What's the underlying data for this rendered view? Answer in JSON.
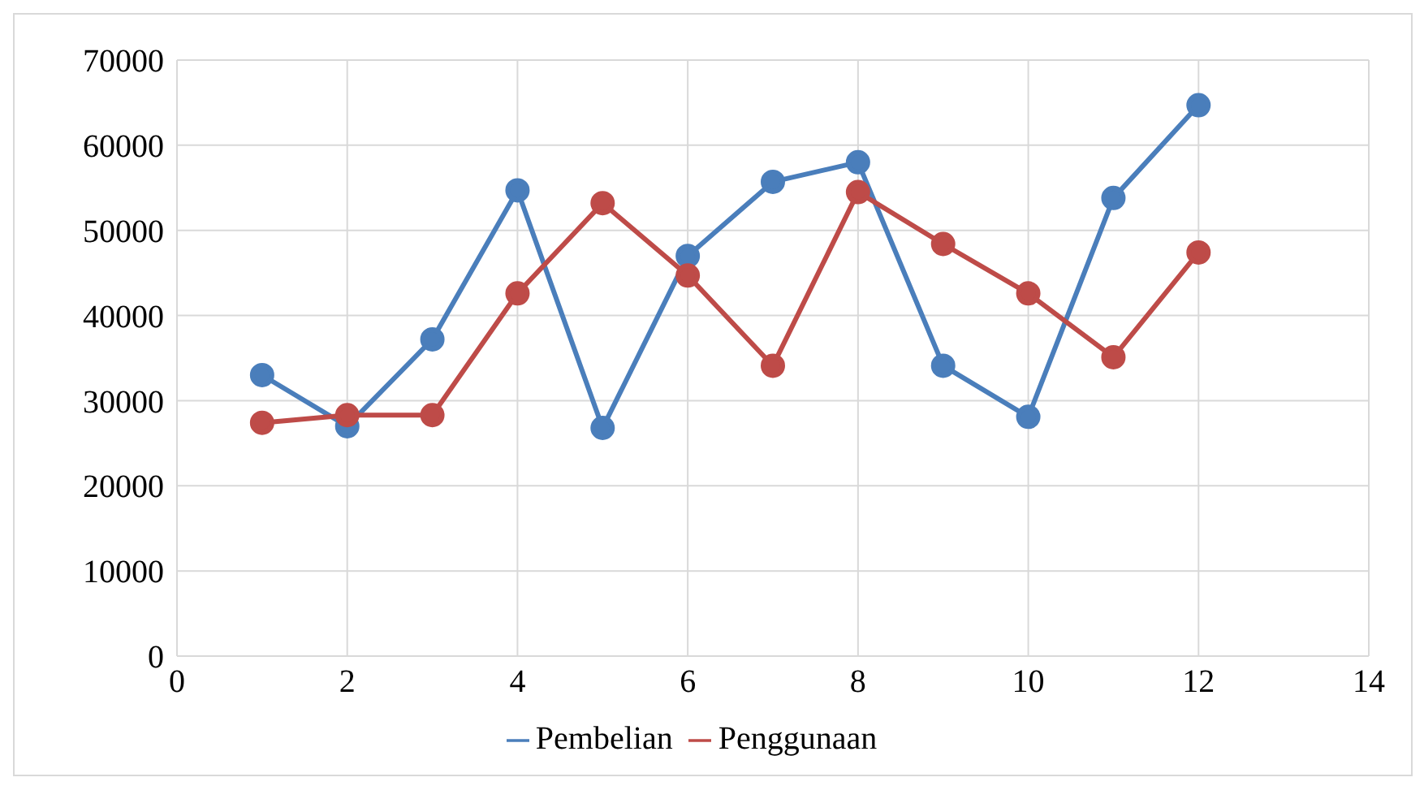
{
  "chart_data": {
    "type": "line",
    "x": [
      1,
      2,
      3,
      4,
      5,
      6,
      7,
      8,
      9,
      10,
      11,
      12
    ],
    "series": [
      {
        "name": "Pembelian",
        "color": "#4a7ebb",
        "values": [
          33000,
          27000,
          37200,
          54700,
          26800,
          47000,
          55700,
          58000,
          34100,
          28100,
          53800,
          64700
        ]
      },
      {
        "name": "Penggunaan",
        "color": "#be4b48",
        "values": [
          27400,
          28300,
          28300,
          42600,
          53200,
          44700,
          34100,
          54500,
          48400,
          42600,
          35100,
          47400
        ]
      }
    ],
    "xlim": [
      0,
      14
    ],
    "xticks": [
      0,
      2,
      4,
      6,
      8,
      10,
      12,
      14
    ],
    "ylim": [
      0,
      70000
    ],
    "yticks": [
      0,
      10000,
      20000,
      30000,
      40000,
      50000,
      60000,
      70000
    ],
    "grid": true,
    "legend": "bottom",
    "marker": "circle",
    "line_style": "solid"
  }
}
